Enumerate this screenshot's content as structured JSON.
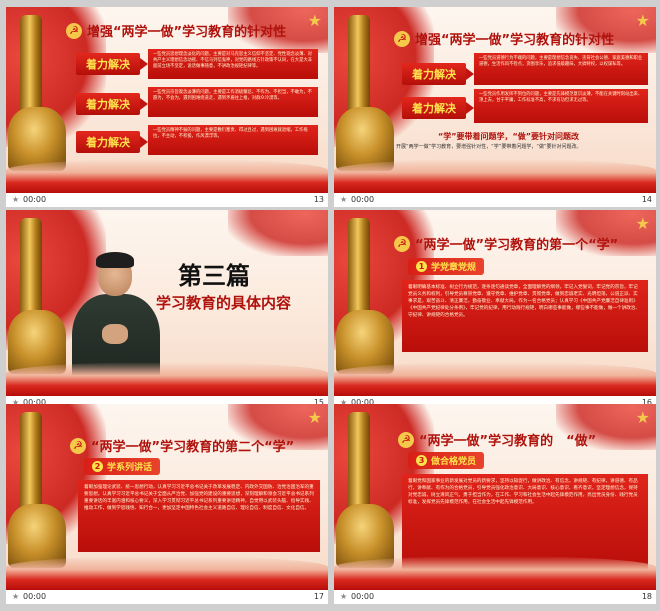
{
  "slides": [
    {
      "number": "13",
      "time": "00:00",
      "title": "增强“两学一做”学习教育的针对性",
      "buttons": [
        "着力解决",
        "着力解决",
        "着力解决"
      ],
      "boxes": [
        "一些党员思想理念淡化的问题，主要是对马克思主义信仰不坚定、党性观念淡薄、对共产主义理想信念动摇、不信马列信鬼神，对党的路线方针政策不认同，在大是大非面前立场不坚定，说话做事随意，不讲政治规矩纪律等。",
        "一些党员宗旨观念淡薄的问题，主要是工作消极懈怠、不作为、不担当，不敢为，不愿为，不会为，遇到困难绕道走，遇到矛盾往上推，对群众冷漠等。",
        "一些党员精神不振的问题，主要是敷衍塞责、得过且过，遇到困难就退缩，工作拖拉，不主动，不积极，作风漂浮等。"
      ]
    },
    {
      "number": "14",
      "time": "00:00",
      "title": "增强“两学一做”学习教育的针对性",
      "buttons": [
        "着力解决",
        "着力解决"
      ],
      "boxes": [
        "一些党员道德行为不端的问题，主要是理想信念丧失、违背社会公德、家庭美德和职业道德，生活作风不检点，贪图享乐，追求低级趣味，大搞特权，以权谋私等。",
        "一些党员作用发挥不到位的问题，主要是先锋模范意识淡薄，不能在关键时刻站出来、顶上去，甘于平庸，工作标准不高，不求有功但求无过等。"
      ],
      "caption": "“学”要带着问题学，“做”要针对问题改",
      "caption_line": "开展“两学一做”学习教育，要增强针对性，“学”要带着问题学，“做”要针对问题改。"
    },
    {
      "number": "15",
      "time": "00:00",
      "heading": "第三篇",
      "subheading": "学习教育的具体内容"
    },
    {
      "number": "16",
      "time": "00:00",
      "title": "“两学一做”学习教育的第一个“学”",
      "pill_num": "1",
      "pill_label": "学党章党规",
      "body": "着眼明确基本标准、树立行为规范，逐条逐句通读党章，全面理解党的纲领，牢记入党誓词，牢记党的宗旨，牢记党员义务和权利，引导党员尊崇党章、遵守党章、维护党章、贯彻党章，做到忠诚老实、光明坦荡，公道正派、实事求是，艰苦奋斗、清正廉洁，勤奋敬业、奉献大局，作为一名合格党员；认真学习《中国共产党廉洁自律准则》《中国共产党纪律处分条例》，牢记党的纪律，用行动践行规矩，明白哪些事能做，哪些事不能做，做一个讲政治、守纪律、讲规矩的合格党员。"
    },
    {
      "number": "17",
      "time": "00:00",
      "title": "“两学一做”学习教育的第二个“学”",
      "pill_num": "2",
      "pill_label": "学系列讲话",
      "body": "着眼加强理论武装、统一思想行动，认真学习习近平总书记关于改革发展稳定、内政外交国防、治党治国治军的重要思想，认真学习习近平总书记关于全面从严治党、加强党的建设的重要思想，深刻理解和领会习近平总书记系列重要讲话的丰富内涵和核心要义，深入学习贯彻习近平总书记系列重要讲话精神，自觉用以武装头脑、指导实践、推动工作，做到学思践悟、知行合一，更加坚定中国特色社会主义道路自信、理论自信、制度自信、文化自信。"
    },
    {
      "number": "18",
      "time": "00:00",
      "title": "“两学一做”学习教育的　“做”",
      "pill_num": "3",
      "pill_label": "做合格党员",
      "body": "着眼党和国家事业的新发展对党员的新要求，坚持以知促行，做讲政治、有信念，讲规矩、有纪律，讲道德、有品行，讲奉献、有作为的合格党员，引导党员强化政治意识、大局意识、核心意识、看齐意识，坚定理想信念，保持对党忠诚，树立清风正气，勇于担当作为，在工作、学习和社会生活中起先锋模范作用，亮出党员身份、践行党员标准，发挥党员先锋模范作用，在社会生活中起先锋模范作用。"
    }
  ]
}
